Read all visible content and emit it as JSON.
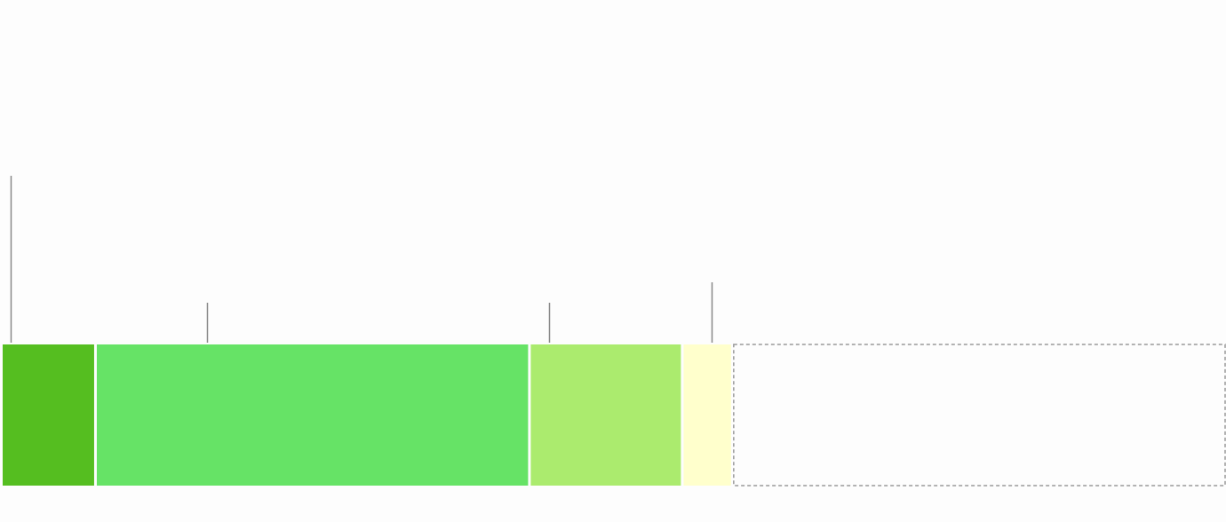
{
  "chart_data": {
    "type": "bar",
    "orientation": "horizontal-stacked",
    "title": "",
    "xlabel": "",
    "ylabel": "",
    "unit": "percent",
    "xlim": [
      0,
      100
    ],
    "grid": false,
    "legend": "none",
    "segments": [
      {
        "value": 7.7,
        "color": "#55be20",
        "leader": true
      },
      {
        "value": 35.5,
        "color": "#66e366",
        "leader": true
      },
      {
        "value": 12.5,
        "color": "#abeb6e",
        "leader": true
      },
      {
        "value": 4.1,
        "color": "#ffffcc",
        "leader": true
      },
      {
        "value": 39.4,
        "color": "none",
        "dashed_outline": true,
        "leader": false
      }
    ],
    "leader_color": "#888888",
    "outline_color": "#999999"
  }
}
